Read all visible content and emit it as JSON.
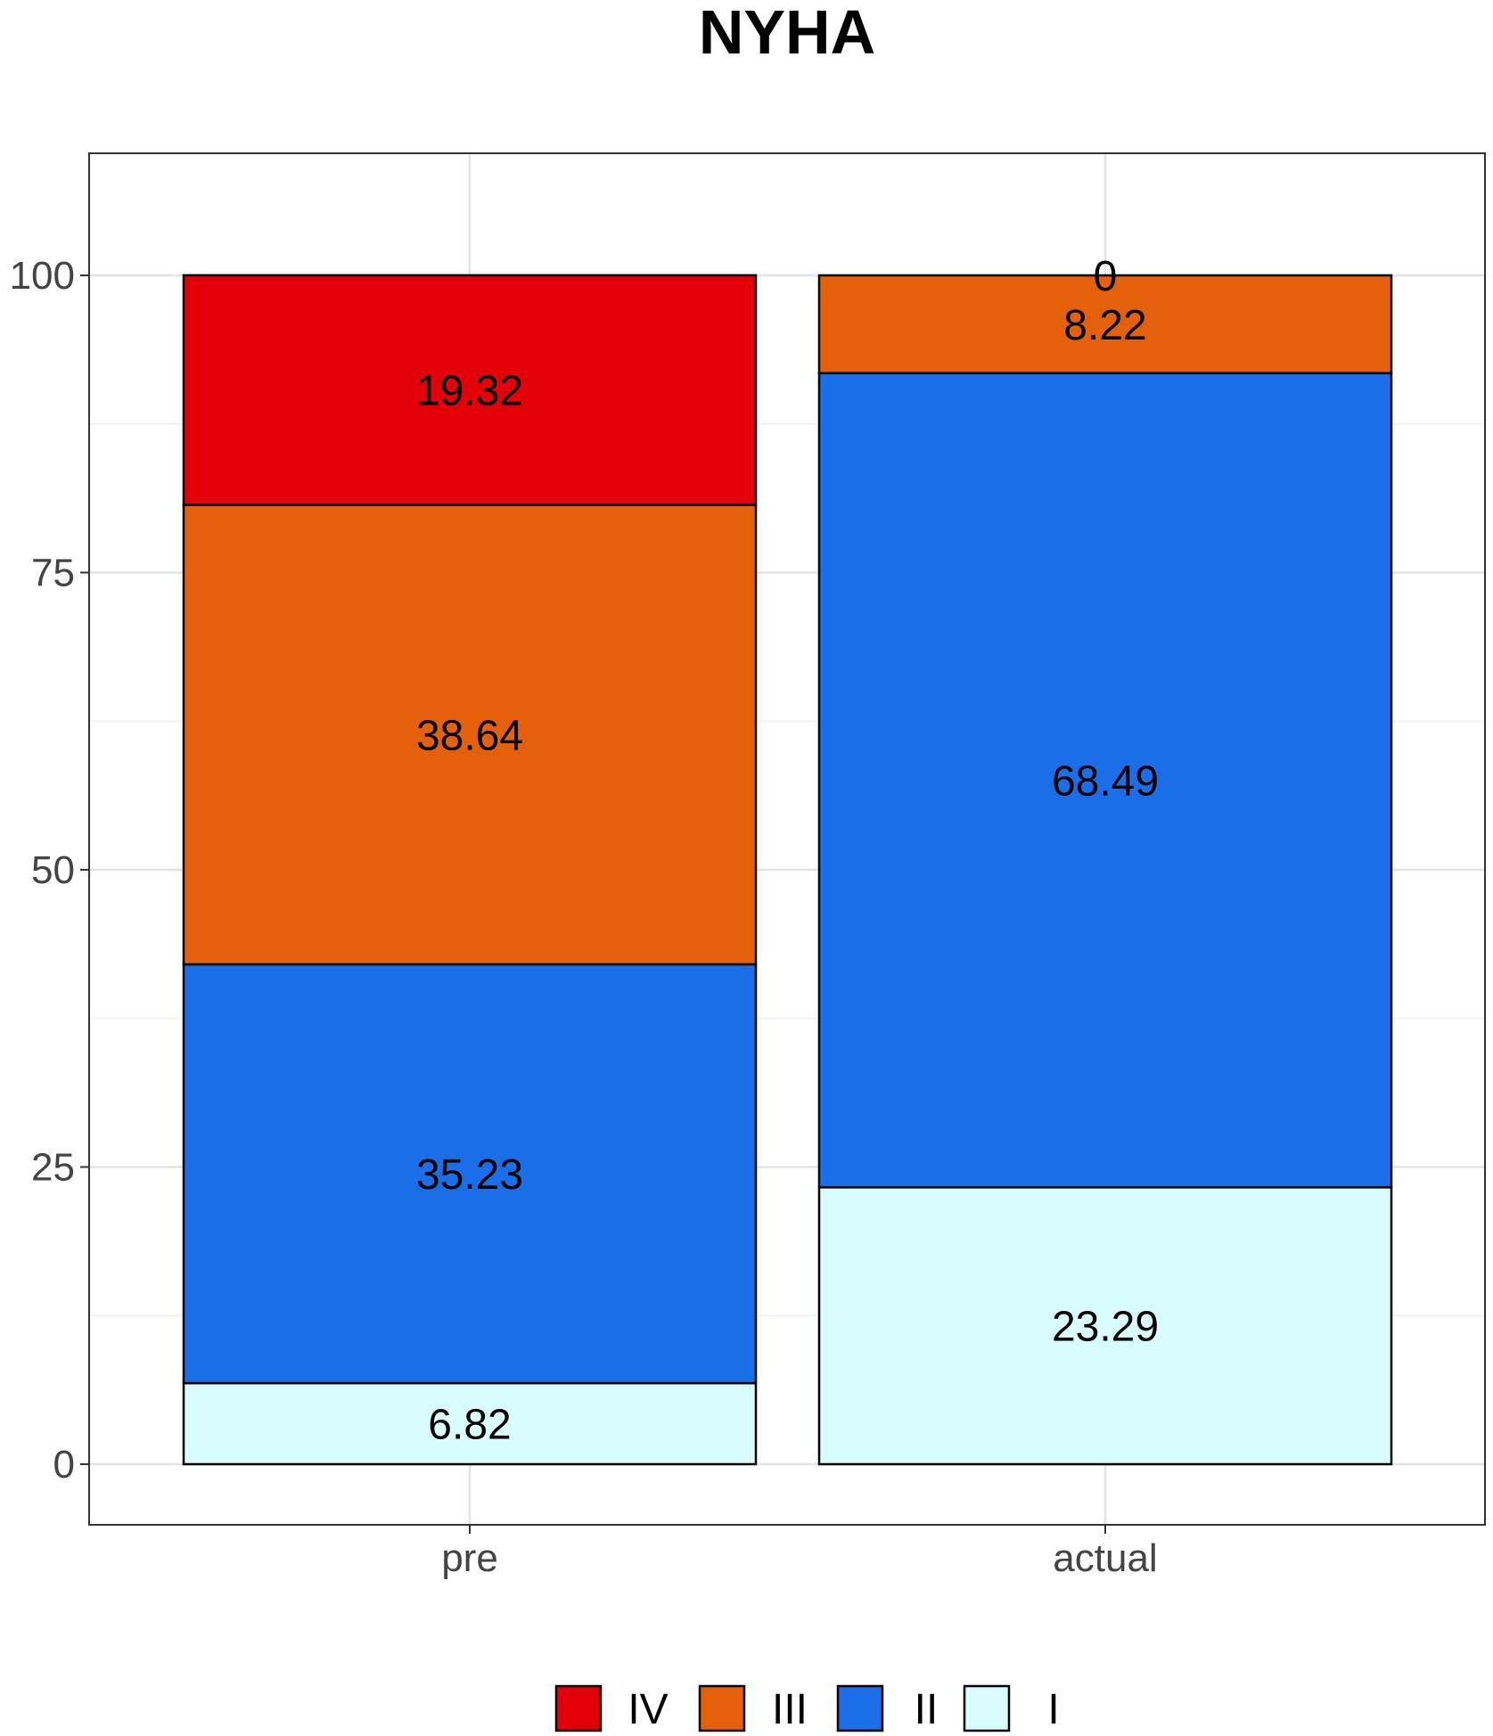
{
  "chart_data": {
    "type": "bar",
    "stacked": true,
    "title": "NYHA",
    "xlabel": "",
    "ylabel": "",
    "categories": [
      "pre",
      "actual"
    ],
    "ylim": [
      0,
      110
    ],
    "yticks": [
      0,
      25,
      50,
      75,
      100
    ],
    "grid": true,
    "legend_position": "bottom",
    "series": [
      {
        "name": "I",
        "color": "#d9fcfc",
        "values": [
          6.82,
          23.29
        ]
      },
      {
        "name": "II",
        "color": "#1a6ee8",
        "values": [
          35.23,
          68.49
        ]
      },
      {
        "name": "III",
        "color": "#e5600a",
        "values": [
          38.64,
          8.22
        ]
      },
      {
        "name": "IV",
        "color": "#e30008",
        "values": [
          19.32,
          0
        ]
      }
    ],
    "data_labels": [
      [
        "6.82",
        "23.29"
      ],
      [
        "35.23",
        "68.49"
      ],
      [
        "38.64",
        "8.22"
      ],
      [
        "19.32",
        "0"
      ]
    ],
    "legend_order": [
      "IV",
      "III",
      "II",
      "I"
    ]
  }
}
